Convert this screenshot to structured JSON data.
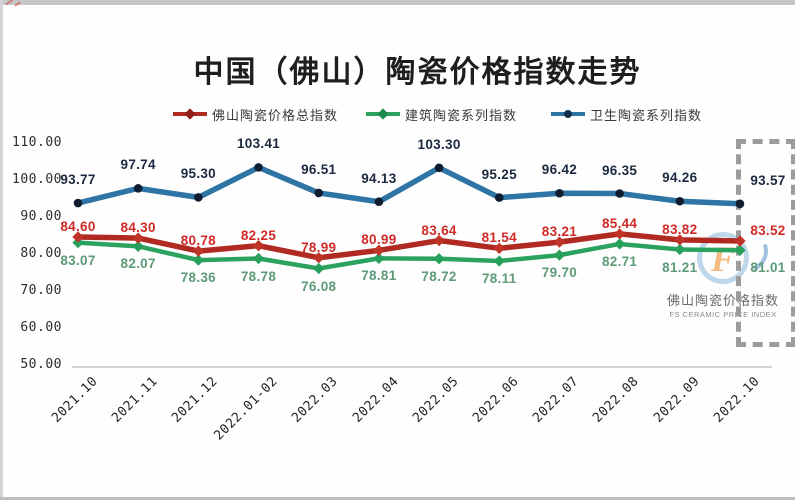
{
  "frame": {
    "title": "中国（佛山）陶瓷价格指数走势"
  },
  "legend": [
    {
      "label": "佛山陶瓷价格总指数",
      "color": "#b02a22",
      "marker": "diamond",
      "marker_color": "#8f1f1a"
    },
    {
      "label": "建筑陶瓷系列指数",
      "color": "#2ba35f",
      "marker": "diamond",
      "marker_color": "#1f8a4d"
    },
    {
      "label": "卫生陶瓷系列指数",
      "color": "#2e74a4",
      "marker": "dot",
      "marker_color": "#123050"
    }
  ],
  "chart_data": {
    "type": "line",
    "title": "中国（佛山）陶瓷价格指数走势",
    "categories": [
      "2021.10",
      "2021.11",
      "2021.12",
      "2022.01-02",
      "2022.03",
      "2022.04",
      "2022.05",
      "2022.06",
      "2022.07",
      "2022.08",
      "2022.09",
      "2022.10"
    ],
    "series": [
      {
        "name": "佛山陶瓷价格总指数",
        "color": "#b02a22",
        "marker": "diamond",
        "marker_color": "#c03428",
        "label_color": "#cf2a27",
        "label_position": "above",
        "values": [
          84.6,
          84.3,
          80.78,
          82.25,
          78.99,
          80.99,
          83.64,
          81.54,
          83.21,
          85.44,
          83.82,
          83.52
        ]
      },
      {
        "name": "建筑陶瓷系列指数",
        "color": "#2ba35f",
        "marker": "diamond",
        "marker_color": "#27a05c",
        "label_color": "#5d9a77",
        "label_position": "below",
        "values": [
          83.07,
          82.07,
          78.36,
          78.78,
          76.08,
          78.81,
          78.72,
          78.11,
          79.7,
          82.71,
          81.21,
          81.01
        ]
      },
      {
        "name": "卫生陶瓷系列指数",
        "color": "#2e74a4",
        "marker": "dot",
        "marker_color": "#101d30",
        "label_color": "#1c2940",
        "label_position": "above",
        "values": [
          93.77,
          97.74,
          95.3,
          103.41,
          96.51,
          94.13,
          103.3,
          95.25,
          96.42,
          96.35,
          94.26,
          93.57
        ]
      }
    ],
    "y_ticks": [
      "110.00",
      "100.00",
      "90.00",
      "80.00",
      "70.00",
      "60.00",
      "50.00"
    ],
    "ylim": [
      50,
      110
    ],
    "xlabel": "",
    "ylabel": "",
    "grid": false,
    "legend_position": "top",
    "highlight_last_period": true
  },
  "watermark": {
    "logo_letter": "F",
    "line1": "佛山陶瓷价格指数",
    "line2": "FS CERAMIC PRICE INDEX"
  }
}
